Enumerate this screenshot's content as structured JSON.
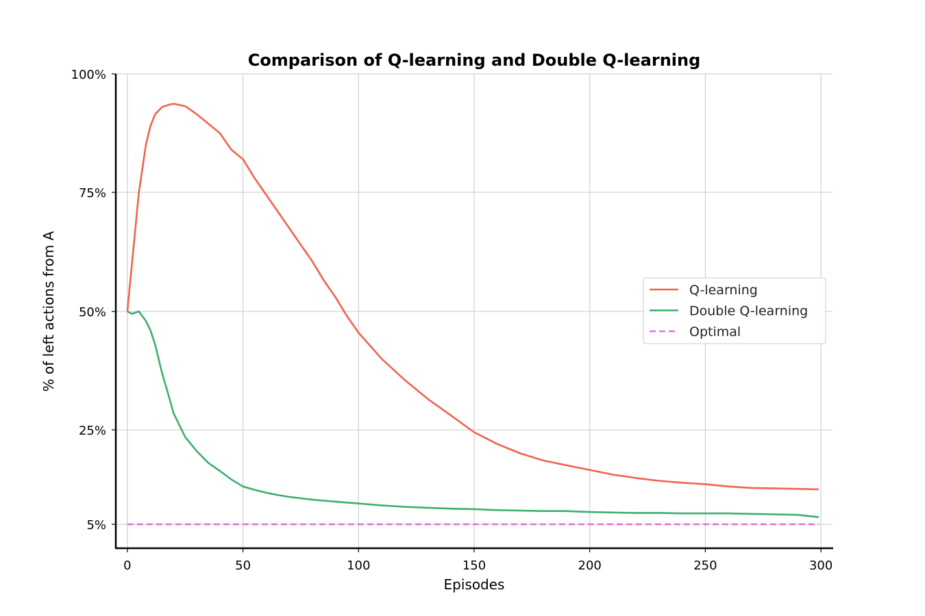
{
  "chart_data": {
    "type": "line",
    "title": "Comparison of Q-learning and Double Q-learning",
    "xlabel": "Episodes",
    "ylabel": "% of left actions from A",
    "xlim": [
      -5,
      305
    ],
    "ylim": [
      0,
      1.0
    ],
    "x_ticks": [
      0,
      50,
      100,
      150,
      200,
      250,
      300
    ],
    "x_tick_labels": [
      "0",
      "50",
      "100",
      "150",
      "200",
      "250",
      "300"
    ],
    "y_ticks": [
      0.05,
      0.25,
      0.5,
      0.75,
      1.0
    ],
    "y_tick_labels": [
      "5%",
      "25%",
      "50%",
      "75%",
      "100%"
    ],
    "grid": true,
    "legend_position": "center-right",
    "x": [
      0,
      2,
      5,
      8,
      10,
      12,
      15,
      18,
      20,
      25,
      30,
      35,
      40,
      45,
      50,
      55,
      60,
      65,
      70,
      75,
      80,
      85,
      90,
      95,
      100,
      110,
      120,
      130,
      140,
      150,
      160,
      170,
      180,
      190,
      200,
      210,
      220,
      230,
      240,
      250,
      260,
      270,
      280,
      290,
      299
    ],
    "series": [
      {
        "name": "Q-learning",
        "color": "#f0624d",
        "dashed": false,
        "values": [
          0.5,
          0.6,
          0.75,
          0.85,
          0.89,
          0.915,
          0.93,
          0.935,
          0.937,
          0.932,
          0.915,
          0.895,
          0.875,
          0.84,
          0.82,
          0.78,
          0.745,
          0.71,
          0.675,
          0.64,
          0.605,
          0.565,
          0.53,
          0.49,
          0.455,
          0.4,
          0.355,
          0.315,
          0.28,
          0.245,
          0.22,
          0.2,
          0.185,
          0.175,
          0.165,
          0.155,
          0.148,
          0.142,
          0.138,
          0.135,
          0.13,
          0.127,
          0.126,
          0.125,
          0.124
        ]
      },
      {
        "name": "Double Q-learning",
        "color": "#3aaf6c",
        "dashed": false,
        "values": [
          0.5,
          0.495,
          0.5,
          0.48,
          0.46,
          0.43,
          0.37,
          0.32,
          0.285,
          0.235,
          0.205,
          0.18,
          0.163,
          0.145,
          0.13,
          0.123,
          0.117,
          0.112,
          0.108,
          0.105,
          0.102,
          0.1,
          0.098,
          0.096,
          0.094,
          0.09,
          0.087,
          0.085,
          0.083,
          0.082,
          0.08,
          0.079,
          0.078,
          0.078,
          0.076,
          0.075,
          0.074,
          0.074,
          0.073,
          0.073,
          0.073,
          0.072,
          0.071,
          0.07,
          0.065
        ]
      },
      {
        "name": "Optimal",
        "color": "#da70d6",
        "dashed": true,
        "values": [
          0.05,
          0.05,
          0.05,
          0.05,
          0.05,
          0.05,
          0.05,
          0.05,
          0.05,
          0.05,
          0.05,
          0.05,
          0.05,
          0.05,
          0.05,
          0.05,
          0.05,
          0.05,
          0.05,
          0.05,
          0.05,
          0.05,
          0.05,
          0.05,
          0.05,
          0.05,
          0.05,
          0.05,
          0.05,
          0.05,
          0.05,
          0.05,
          0.05,
          0.05,
          0.05,
          0.05,
          0.05,
          0.05,
          0.05,
          0.05,
          0.05,
          0.05,
          0.05,
          0.05,
          0.05
        ]
      }
    ]
  }
}
